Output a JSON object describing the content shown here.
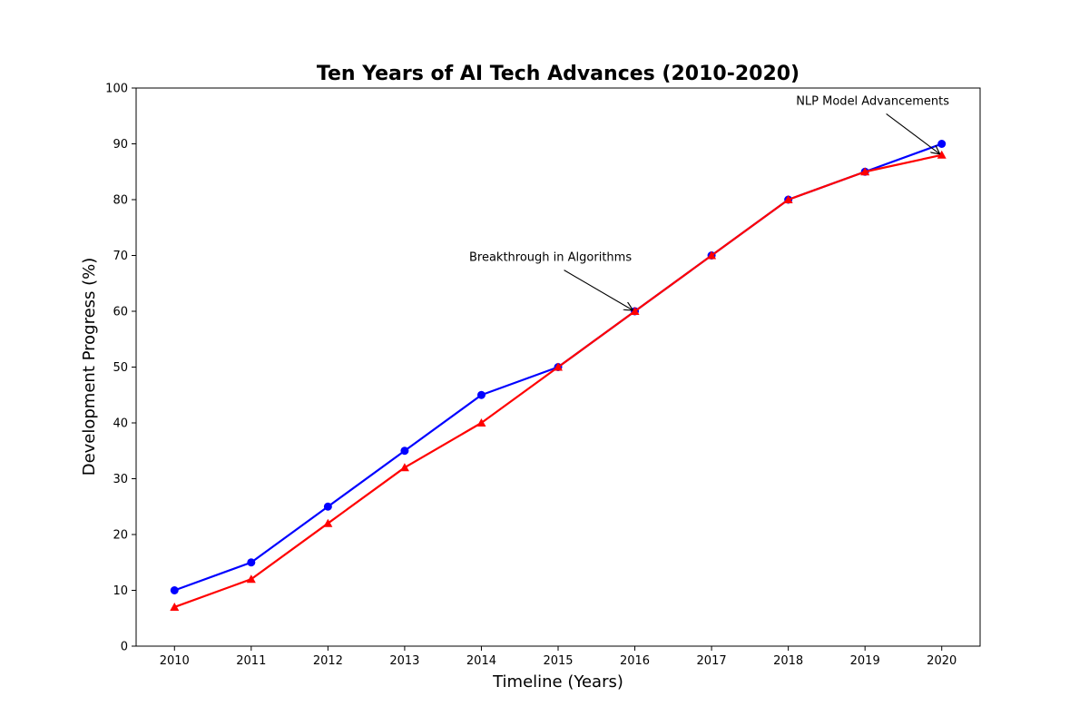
{
  "chart_data": {
    "type": "line",
    "title": "Ten Years of AI Tech Advances (2010-2020)",
    "xlabel": "Timeline (Years)",
    "ylabel": "Development Progress (%)",
    "x": [
      2010,
      2011,
      2012,
      2013,
      2014,
      2015,
      2016,
      2017,
      2018,
      2019,
      2020
    ],
    "xlim": [
      2009.5,
      2020.5
    ],
    "ylim": [
      0,
      100
    ],
    "yticks": [
      0,
      10,
      20,
      30,
      40,
      50,
      60,
      70,
      80,
      90,
      100
    ],
    "grid": false,
    "series": [
      {
        "color": "#0000ff",
        "marker": "circle",
        "values": [
          10,
          15,
          25,
          35,
          45,
          50,
          60,
          70,
          80,
          85,
          90
        ]
      },
      {
        "color": "#ff0000",
        "marker": "triangle",
        "values": [
          7,
          12,
          22,
          32,
          40,
          50,
          60,
          70,
          80,
          85,
          88
        ]
      }
    ],
    "annotations": [
      {
        "text": "Breakthrough in Algorithms",
        "point": [
          2016,
          60
        ],
        "text_at": [
          2014.9,
          69
        ]
      },
      {
        "text": "NLP Model Advancements",
        "point": [
          2020,
          88
        ],
        "text_at": [
          2019.1,
          97
        ]
      }
    ]
  }
}
